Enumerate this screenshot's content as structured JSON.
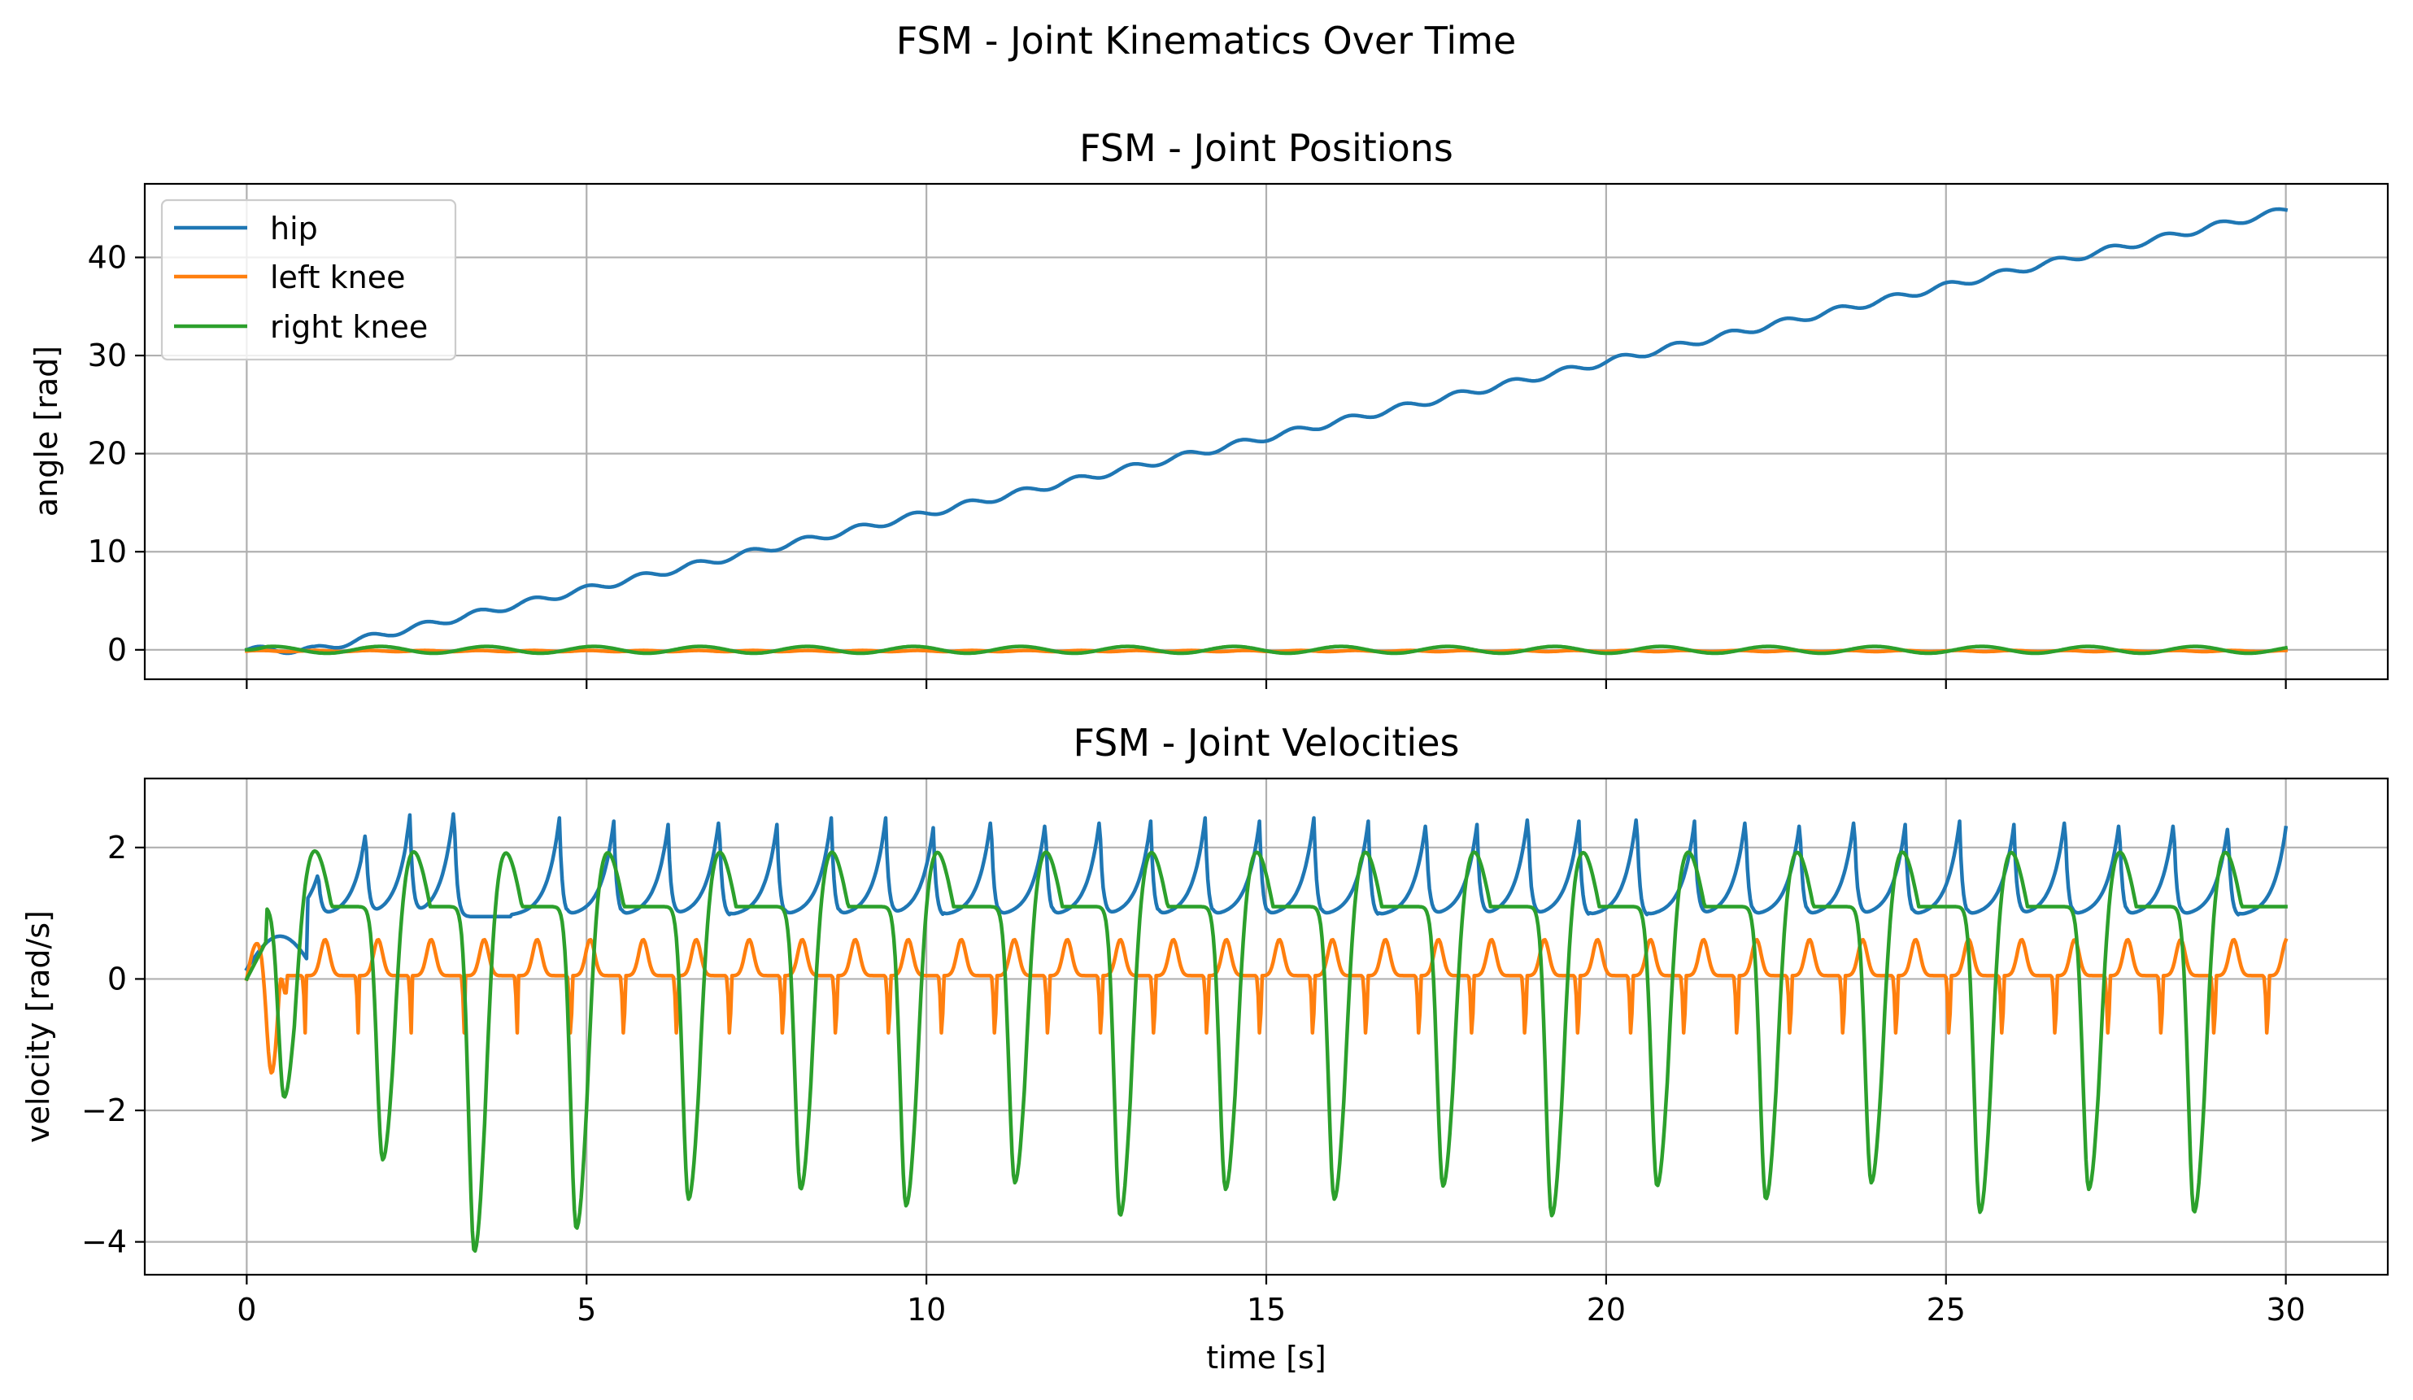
{
  "figure": {
    "suptitle": "FSM - Joint Kinematics Over Time"
  },
  "chart_data": [
    {
      "type": "line",
      "title": "FSM - Joint Positions",
      "xlabel": "",
      "ylabel": "angle [rad]",
      "xlim": [
        -1.5,
        31.5
      ],
      "ylim": [
        -3.0,
        47.5
      ],
      "xticks": [
        0,
        5,
        10,
        15,
        20,
        25,
        30
      ],
      "xtick_labels": [],
      "yticks": [
        0,
        10,
        20,
        30,
        40
      ],
      "ytick_labels": [
        "0",
        "10",
        "20",
        "30",
        "40"
      ],
      "grid": true,
      "legend": {
        "placement": "upper-left",
        "entries": [
          "hip",
          "left knee",
          "right knee"
        ]
      },
      "series": [
        {
          "name": "hip",
          "color": "#1f77b4",
          "model": "hip_position",
          "samples": [
            [
              0,
              0
            ],
            [
              5,
              6.8
            ],
            [
              10,
              14.3
            ],
            [
              15,
              22.0
            ],
            [
              20,
              29.6
            ],
            [
              25,
              37.2
            ],
            [
              30,
              44.9
            ]
          ]
        },
        {
          "name": "left knee",
          "color": "#ff7f0e",
          "model": "lknee_position",
          "samples": [
            [
              0,
              0
            ],
            [
              5,
              -0.1
            ],
            [
              10,
              -0.1
            ],
            [
              15,
              -0.1
            ],
            [
              20,
              -0.1
            ],
            [
              25,
              -0.1
            ],
            [
              30,
              -0.1
            ]
          ]
        },
        {
          "name": "right knee",
          "color": "#2ca02c",
          "model": "rknee_position",
          "samples": [
            [
              0,
              0
            ],
            [
              3,
              0.6
            ],
            [
              3.6,
              -0.9
            ],
            [
              10,
              0
            ],
            [
              20,
              0
            ],
            [
              30,
              0.5
            ]
          ]
        }
      ]
    },
    {
      "type": "line",
      "title": "FSM - Joint Velocities",
      "xlabel": "time [s]",
      "ylabel": "velocity [rad/s]",
      "xlim": [
        -1.5,
        31.5
      ],
      "ylim": [
        -4.5,
        3.05
      ],
      "xticks": [
        0,
        5,
        10,
        15,
        20,
        25,
        30
      ],
      "xtick_labels": [
        "0",
        "5",
        "10",
        "15",
        "20",
        "25",
        "30"
      ],
      "yticks": [
        -4,
        -2,
        0,
        2
      ],
      "ytick_labels": [
        "−4",
        "−2",
        "0",
        "2"
      ],
      "grid": true,
      "series": [
        {
          "name": "hip",
          "color": "#1f77b4",
          "model": "hip_velocity",
          "peak": 2.45,
          "trough": 0.95,
          "peak_times": [
            1.05,
            1.75,
            2.4,
            3.05,
            4.6,
            5.4,
            6.2,
            6.95,
            7.8,
            8.6,
            9.4,
            10.1,
            10.95,
            11.75,
            12.55,
            13.3,
            14.1,
            14.9,
            15.7,
            16.5,
            17.35,
            18.1,
            18.85,
            19.6,
            20.45,
            21.3,
            22.05,
            22.85,
            23.65,
            24.4,
            25.2,
            26.0,
            26.75,
            27.55,
            28.35,
            29.15,
            30.0
          ],
          "peaks": [
            1.6,
            2.2,
            2.45,
            2.6,
            2.45,
            2.4,
            2.35,
            2.45,
            2.35,
            2.45,
            2.45,
            2.3,
            2.45,
            2.4,
            2.45,
            2.4,
            2.45,
            2.4,
            2.45,
            2.4,
            2.4,
            2.35,
            2.5,
            2.4,
            2.5,
            2.4,
            2.45,
            2.4,
            2.45,
            2.35,
            2.4,
            2.35,
            2.45,
            2.4,
            2.4,
            2.35,
            2.3
          ]
        },
        {
          "name": "left knee",
          "color": "#ff7f0e",
          "model": "lknee_velocity",
          "max": 0.8,
          "min": -1.7
        },
        {
          "name": "right knee",
          "color": "#2ca02c",
          "model": "rknee_velocity",
          "max": 2.72,
          "min": -4.15,
          "trough_times": [
            0.55,
            2.0,
            3.35,
            4.85,
            6.5,
            8.15,
            9.7,
            11.3,
            12.85,
            14.4,
            16.0,
            17.6,
            19.2,
            20.75,
            22.35,
            23.9,
            25.5,
            27.1,
            28.65
          ],
          "troughs": [
            -1.8,
            -2.75,
            -4.15,
            -3.8,
            -3.35,
            -3.2,
            -3.45,
            -3.1,
            -3.6,
            -3.2,
            -3.35,
            -3.15,
            -3.6,
            -3.15,
            -3.35,
            -3.1,
            -3.55,
            -3.2,
            -3.55
          ]
        }
      ]
    }
  ]
}
